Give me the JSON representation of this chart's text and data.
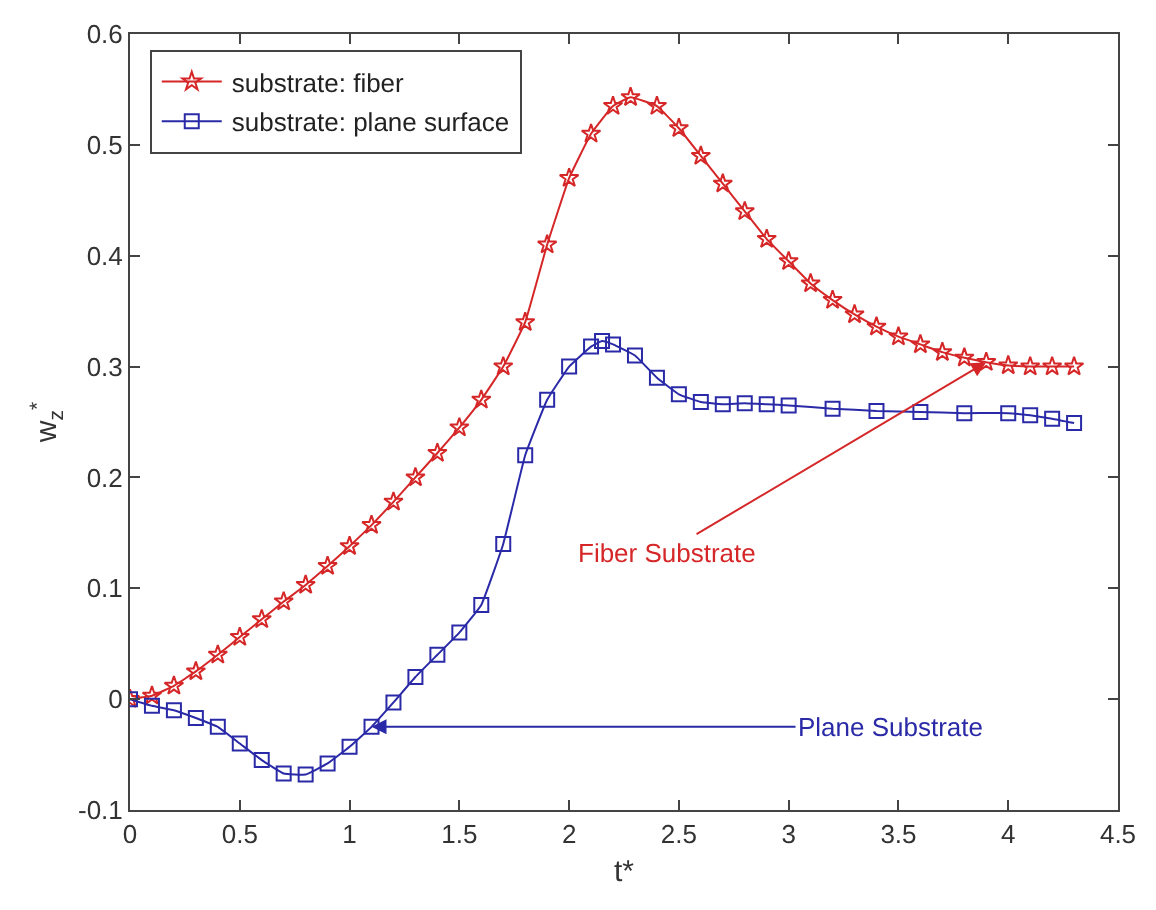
{
  "chart_data": {
    "type": "line",
    "xlabel": "t*",
    "ylabel": "w$_{z}$$^{*}$",
    "xlim": [
      0,
      4.5
    ],
    "xticks": [
      0,
      0.5,
      1,
      1.5,
      2,
      2.5,
      3,
      3.5,
      4,
      4.5
    ],
    "ylim": [
      -0.1,
      0.6
    ],
    "yticks": [
      -0.1,
      0,
      0.1,
      0.2,
      0.3,
      0.4,
      0.5,
      0.6
    ],
    "legend": "top left",
    "line_style": "solid",
    "series": [
      {
        "name": "substrate: fiber",
        "color": "#d62728",
        "marker": "star",
        "x": [
          0,
          0.1,
          0.2,
          0.3,
          0.4,
          0.5,
          0.6,
          0.7,
          0.8,
          0.9,
          1.0,
          1.1,
          1.2,
          1.3,
          1.4,
          1.5,
          1.6,
          1.7,
          1.8,
          1.9,
          2.0,
          2.1,
          2.2,
          2.28,
          2.4,
          2.5,
          2.6,
          2.7,
          2.8,
          2.9,
          3.0,
          3.1,
          3.2,
          3.3,
          3.4,
          3.5,
          3.6,
          3.7,
          3.8,
          3.9,
          4.0,
          4.1,
          4.2,
          4.3
        ],
        "values": [
          0,
          0.003,
          0.012,
          0.025,
          0.04,
          0.056,
          0.072,
          0.088,
          0.103,
          0.12,
          0.138,
          0.157,
          0.178,
          0.2,
          0.222,
          0.245,
          0.27,
          0.3,
          0.34,
          0.41,
          0.47,
          0.51,
          0.535,
          0.543,
          0.535,
          0.515,
          0.49,
          0.465,
          0.44,
          0.415,
          0.395,
          0.375,
          0.36,
          0.347,
          0.336,
          0.327,
          0.32,
          0.313,
          0.308,
          0.304,
          0.301,
          0.3,
          0.3,
          0.3
        ]
      },
      {
        "name": "substrate: plane surface",
        "color": "#2a2aa8",
        "marker": "square",
        "x": [
          0,
          0.1,
          0.2,
          0.3,
          0.4,
          0.5,
          0.6,
          0.7,
          0.8,
          0.9,
          1.0,
          1.1,
          1.2,
          1.3,
          1.4,
          1.5,
          1.6,
          1.7,
          1.8,
          1.9,
          2.0,
          2.1,
          2.15,
          2.2,
          2.3,
          2.4,
          2.5,
          2.6,
          2.7,
          2.8,
          2.9,
          3.0,
          3.2,
          3.4,
          3.6,
          3.8,
          4.0,
          4.1,
          4.2,
          4.3
        ],
        "values": [
          0,
          -0.006,
          -0.01,
          -0.017,
          -0.025,
          -0.04,
          -0.055,
          -0.067,
          -0.068,
          -0.058,
          -0.043,
          -0.025,
          -0.003,
          0.02,
          0.04,
          0.06,
          0.085,
          0.14,
          0.22,
          0.27,
          0.3,
          0.318,
          0.323,
          0.32,
          0.31,
          0.29,
          0.275,
          0.268,
          0.266,
          0.267,
          0.266,
          0.265,
          0.262,
          0.26,
          0.259,
          0.258,
          0.258,
          0.256,
          0.253,
          0.249
        ]
      }
    ],
    "annotations": [
      {
        "text": "Fiber Substrate",
        "x": 3.9,
        "y": 0.304
      },
      {
        "text": "Plane Substrate",
        "x": 1.1,
        "y": -0.025
      }
    ]
  }
}
